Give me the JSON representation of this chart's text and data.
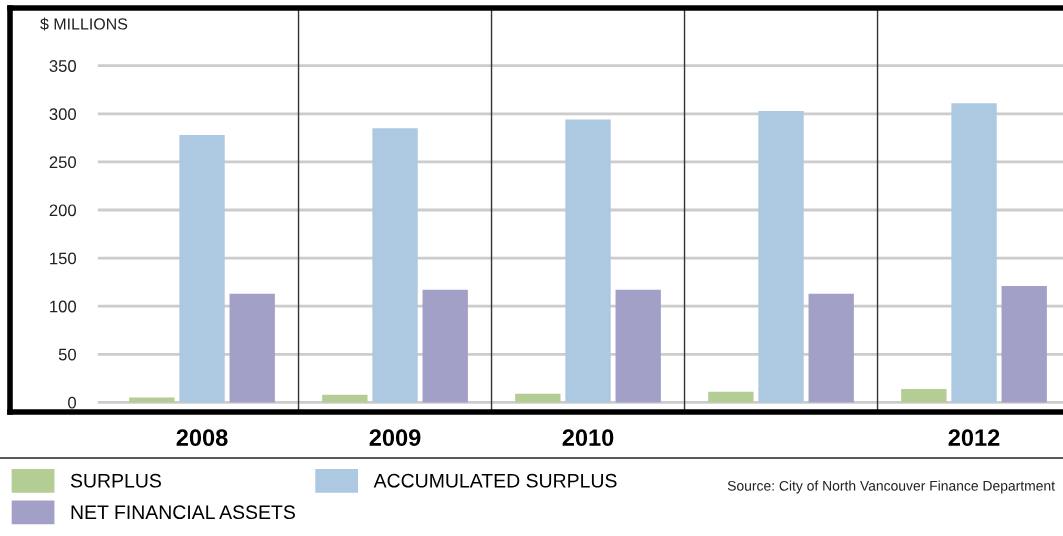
{
  "chart_data": {
    "type": "bar",
    "ylabel": "$ MILLIONS",
    "categories": [
      "2008",
      "2009",
      "2010",
      null,
      "2012"
    ],
    "series": [
      {
        "name": "SURPLUS",
        "color": "#b3cd94",
        "values": [
          5,
          8,
          9,
          11,
          14
        ]
      },
      {
        "name": "ACCUMULATED SURPLUS",
        "color": "#adc9e2",
        "values": [
          278,
          285,
          294,
          303,
          311
        ]
      },
      {
        "name": "NET FINANCIAL ASSETS",
        "color": "#a3a0c8",
        "values": [
          113,
          117,
          117,
          113,
          121
        ]
      }
    ],
    "ylim": [
      -10,
      410
    ],
    "yticks": [
      0,
      50,
      100,
      150,
      200,
      250,
      300,
      350
    ],
    "grid": "y",
    "legend": "bottom left",
    "annotations": [
      "Source: City of North Vancouver Finance Department"
    ]
  }
}
